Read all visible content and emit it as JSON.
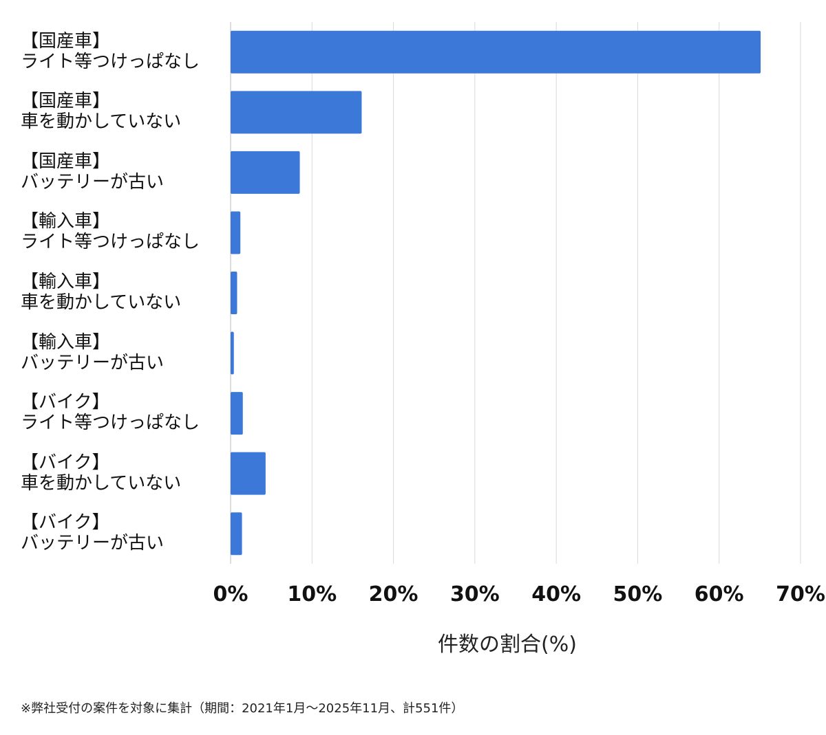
{
  "chart_data": {
    "type": "barh",
    "x_label": "件数の割合(%)",
    "note": "※弊社受付の案件を対象に集計（期間：2021年1月～2025年11月、計551件）",
    "categories": [
      "【国産車】\nライト等つけっぱなし",
      "【国産車】\n車を動かしていない",
      "【国産車】\nバッテリーが古い",
      "【輸入車】\nライト等つけっぱなし",
      "【輸入車】\n車を動かしていない",
      "【輸入車】\nバッテリーが古い",
      "【バイク】\nライト等つけっぱなし",
      "【バイク】\n車を動かしていない",
      "【バイク】\nバッテリーが古い"
    ],
    "values": [
      65.1,
      16.1,
      8.5,
      1.2,
      0.8,
      0.4,
      1.5,
      4.3,
      1.4
    ],
    "color": "#3c78d8",
    "xlim": [
      0,
      70
    ],
    "xticks": [
      {
        "value": 0,
        "label": "0%"
      },
      {
        "value": 10,
        "label": "10%"
      },
      {
        "value": 20,
        "label": "20%"
      },
      {
        "value": 30,
        "label": "30%"
      },
      {
        "value": 40,
        "label": "40%"
      },
      {
        "value": 50,
        "label": "50%"
      },
      {
        "value": 60,
        "label": "60%"
      },
      {
        "value": 70,
        "label": "70%"
      }
    ],
    "grid": true
  }
}
